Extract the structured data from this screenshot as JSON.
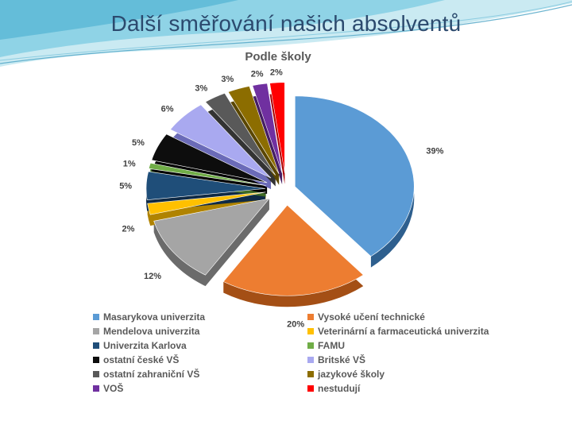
{
  "slide": {
    "title": "Další směřování našich absolventů"
  },
  "chart_data": {
    "type": "pie",
    "title": "Podle školy",
    "legend_position": "bottom",
    "slices": [
      {
        "label": "Masarykova univerzita",
        "value": 39,
        "display": "39%",
        "color": "#5b9bd5",
        "dark": "#2e5f8e"
      },
      {
        "label": "Vysoké učení technické",
        "value": 20,
        "display": "20%",
        "color": "#ed7d31",
        "dark": "#a44f15"
      },
      {
        "label": "Mendelova univerzita",
        "value": 12,
        "display": "12%",
        "color": "#a5a5a5",
        "dark": "#6b6b6b"
      },
      {
        "label": "Veterinární a farmaceutická univerzita",
        "value": 2,
        "display": "2%",
        "color": "#ffc000",
        "dark": "#b08300"
      },
      {
        "label": "Univerzita Karlova",
        "value": 5,
        "display": "5%",
        "color": "#1f4e79",
        "dark": "#0f2a45"
      },
      {
        "label": "FAMU",
        "value": 1,
        "display": "1%",
        "color": "#70ad47",
        "dark": "#3f6b24"
      },
      {
        "label": "ostatní české VŠ",
        "value": 5,
        "display": "5%",
        "color": "#0d0d0d",
        "dark": "#000000"
      },
      {
        "label": "Britské VŠ",
        "value": 6,
        "display": "6%",
        "color": "#a9a9f0",
        "dark": "#6b6bb8"
      },
      {
        "label": "ostatní zahraniční VŠ",
        "value": 3,
        "display": "3%",
        "color": "#595959",
        "dark": "#333333"
      },
      {
        "label": "jazykové školy",
        "value": 3,
        "display": "3%",
        "color": "#8c6d00",
        "dark": "#5a4600"
      },
      {
        "label": "VOŠ",
        "value": 2,
        "display": "2%",
        "color": "#7030a0",
        "dark": "#451d63"
      },
      {
        "label": "nestudují",
        "value": 2,
        "display": "2%",
        "color": "#ff0000",
        "dark": "#a80000"
      }
    ],
    "legend": [
      {
        "label": "Masarykova univerzita",
        "color": "#5b9bd5"
      },
      {
        "label": "Vysoké učení technické",
        "color": "#ed7d31"
      },
      {
        "label": "Mendelova univerzita",
        "color": "#a5a5a5"
      },
      {
        "label": "Veterinární a farmaceutická univerzita",
        "color": "#ffc000"
      },
      {
        "label": "Univerzita Karlova",
        "color": "#1f4e79"
      },
      {
        "label": "FAMU",
        "color": "#70ad47"
      },
      {
        "label": "ostatní české VŠ",
        "color": "#0d0d0d"
      },
      {
        "label": "Britské VŠ",
        "color": "#a9a9f0"
      },
      {
        "label": "ostatní zahraniční VŠ",
        "color": "#595959"
      },
      {
        "label": "jazykové školy",
        "color": "#8c6d00"
      },
      {
        "label": "VOŠ",
        "color": "#7030a0"
      },
      {
        "label": "nestudují",
        "color": "#ff0000"
      }
    ]
  }
}
